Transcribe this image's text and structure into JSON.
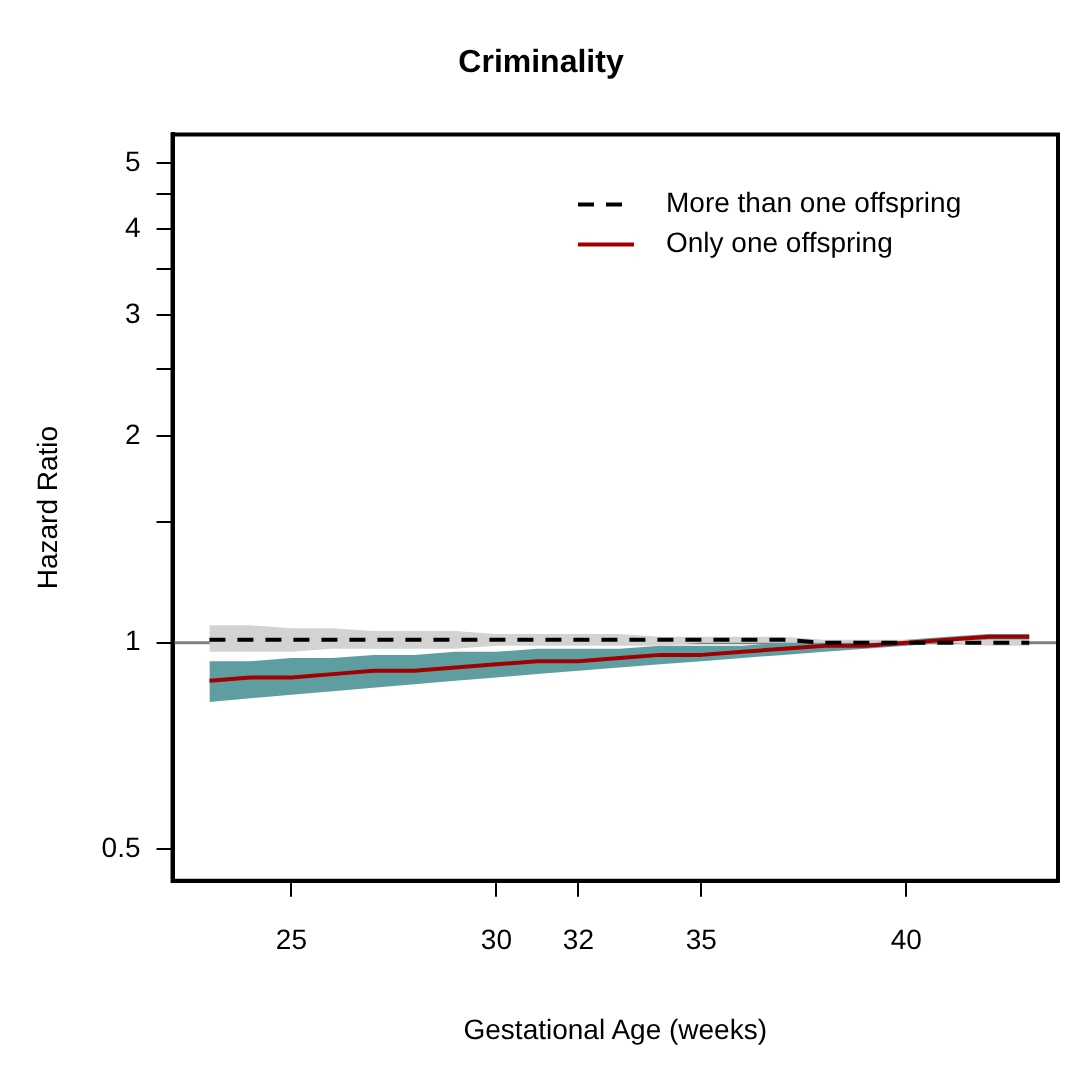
{
  "chart_data": {
    "type": "line",
    "title": "Criminality",
    "xlabel": "Gestational Age (weeks)",
    "ylabel": "Hazard Ratio",
    "x": [
      23,
      24,
      25,
      26,
      27,
      28,
      29,
      30,
      31,
      32,
      33,
      34,
      35,
      36,
      37,
      38,
      39,
      40,
      41,
      42,
      43
    ],
    "series": [
      {
        "name": "More than one offspring",
        "color": "#000000",
        "line_style": "dashed",
        "values": [
          1.01,
          1.01,
          1.01,
          1.01,
          1.01,
          1.01,
          1.01,
          1.01,
          1.01,
          1.01,
          1.01,
          1.01,
          1.01,
          1.01,
          1.01,
          1.0,
          1.0,
          1.0,
          1.0,
          1.0,
          1.0
        ],
        "lower": [
          0.97,
          0.97,
          0.97,
          0.98,
          0.98,
          0.98,
          0.98,
          0.99,
          0.99,
          0.99,
          0.99,
          0.99,
          1.0,
          1.0,
          1.0,
          1.0,
          1.0,
          1.0,
          1.0,
          0.99,
          0.99
        ],
        "upper": [
          1.06,
          1.06,
          1.05,
          1.05,
          1.04,
          1.04,
          1.04,
          1.03,
          1.03,
          1.03,
          1.03,
          1.02,
          1.02,
          1.02,
          1.02,
          1.01,
          1.01,
          1.01,
          1.01,
          1.01,
          1.01
        ]
      },
      {
        "name": "Only one offspring",
        "color": "#a00000",
        "line_style": "solid",
        "values": [
          0.88,
          0.89,
          0.89,
          0.9,
          0.91,
          0.91,
          0.92,
          0.93,
          0.94,
          0.94,
          0.95,
          0.96,
          0.96,
          0.97,
          0.98,
          0.99,
          0.99,
          1.0,
          1.01,
          1.02,
          1.02
        ],
        "lower": [
          0.82,
          0.83,
          0.84,
          0.85,
          0.86,
          0.87,
          0.88,
          0.89,
          0.9,
          0.91,
          0.92,
          0.93,
          0.94,
          0.95,
          0.96,
          0.97,
          0.98,
          0.99,
          1.0,
          1.01,
          1.01
        ],
        "upper": [
          0.94,
          0.94,
          0.95,
          0.95,
          0.96,
          0.96,
          0.97,
          0.97,
          0.98,
          0.98,
          0.98,
          0.99,
          0.99,
          0.99,
          1.0,
          1.0,
          1.0,
          1.01,
          1.02,
          1.03,
          1.03
        ]
      }
    ],
    "xlim": [
      22.1,
      43.7
    ],
    "xticks": [
      25,
      30,
      32,
      35,
      40
    ],
    "ylim": [
      0.45,
      5.5
    ],
    "yticks": [
      0.5,
      1,
      {
        "value": 1.5,
        "label": null
      },
      2,
      {
        "value": 2.5,
        "label": null
      },
      3,
      {
        "value": 3.5,
        "label": null
      },
      4,
      {
        "value": 4.5,
        "label": null
      },
      5
    ],
    "log": "y",
    "grid": false,
    "legend": "top right",
    "marker": "none",
    "ref_lines": [
      {
        "axis": "y",
        "value": 1,
        "color": "#808080"
      }
    ]
  }
}
